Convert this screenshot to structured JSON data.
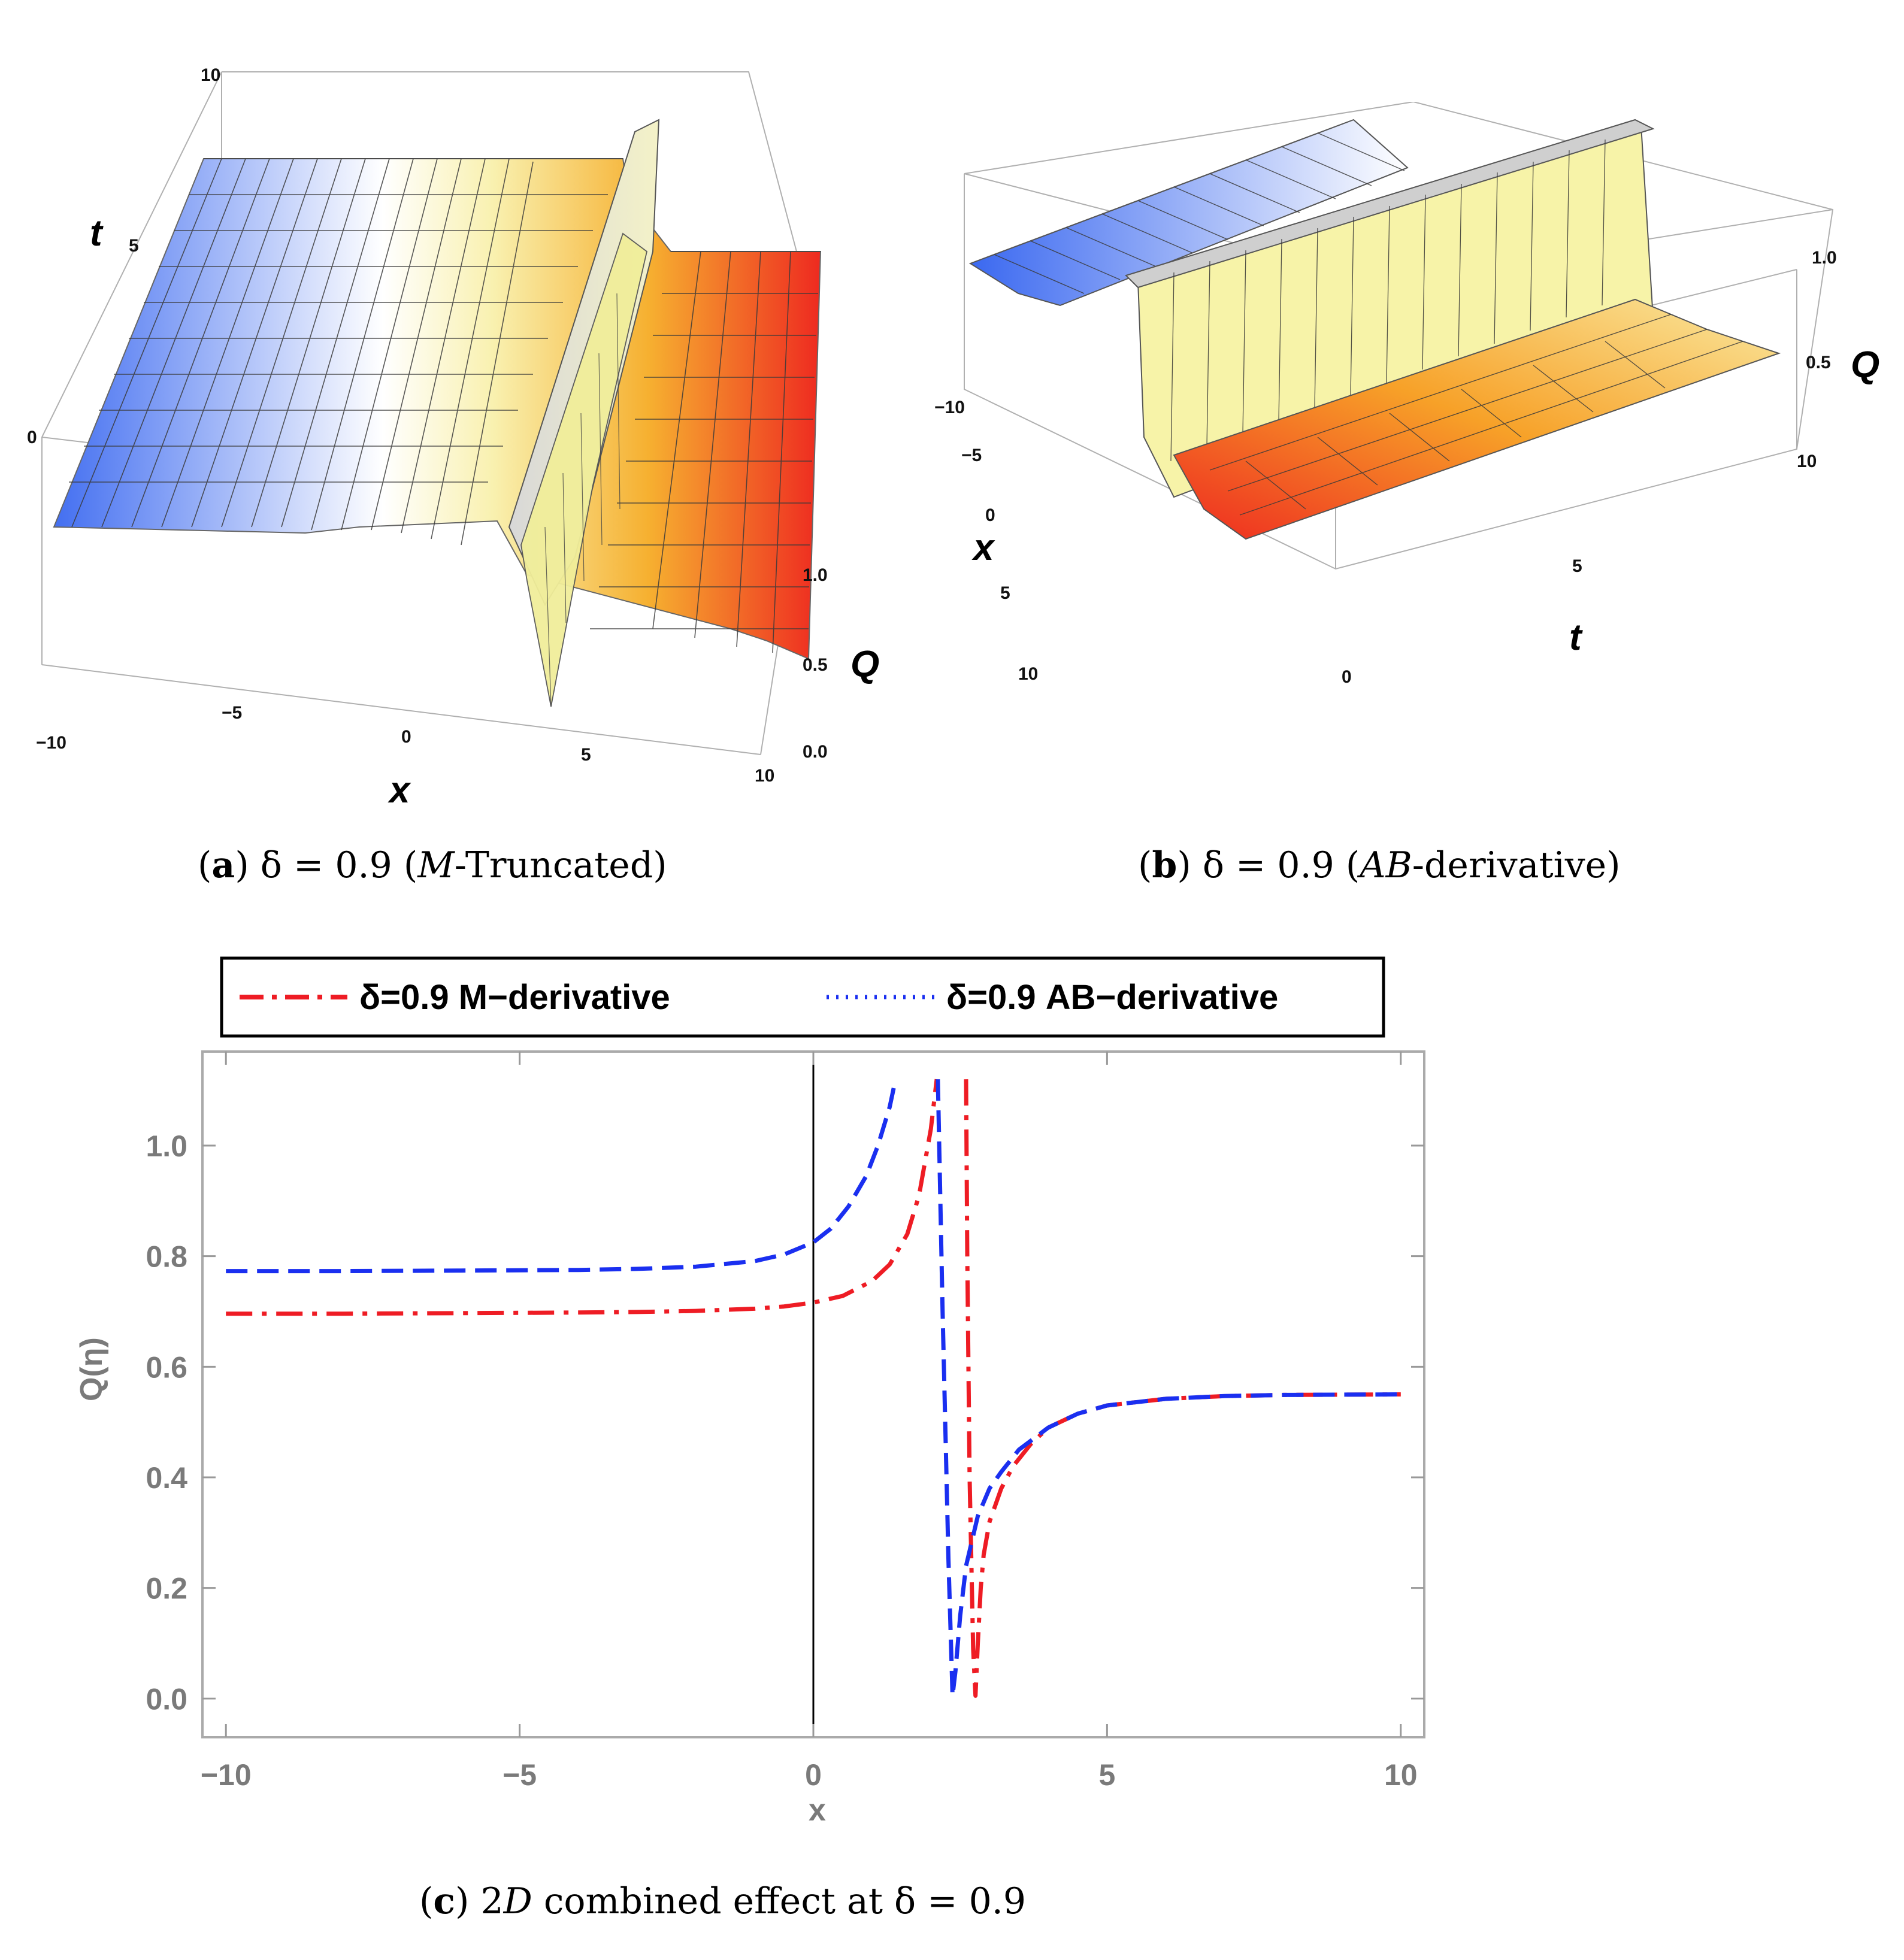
{
  "captions": {
    "a": {
      "label": "a",
      "expr": "δ = 0.9",
      "open": "(",
      "variant": "M",
      "rest": "-Truncated)"
    },
    "b": {
      "label": "b",
      "expr": "δ = 0.9",
      "open": "(",
      "variant": "AB",
      "rest": "-derivative)"
    },
    "c": {
      "label": "c",
      "pre": "2",
      "dim": "D",
      "rest": " combined effect at δ = 0.9"
    }
  },
  "chart_data": [
    {
      "id": "a",
      "type": "surface3d",
      "title": "δ = 0.9 (M-Truncated)",
      "axes": {
        "x": {
          "label": "x",
          "range": [
            -10,
            10
          ],
          "ticks": [
            "−10",
            "−5",
            "0",
            "5",
            "10"
          ]
        },
        "t": {
          "label": "t",
          "range": [
            0,
            10
          ],
          "ticks": [
            "0",
            "5",
            "10"
          ]
        },
        "Q": {
          "label": "Q",
          "range": [
            0,
            1.2
          ],
          "ticks": [
            "0.0",
            "0.5",
            "1.0"
          ]
        }
      },
      "features": {
        "left_plateau": 0.7,
        "right_plateau": 0.55,
        "singularity_x": 2.5
      },
      "colormap": [
        "#3a68f0",
        "#ffffff",
        "#fff3a0",
        "#f5a020",
        "#ee2a20"
      ]
    },
    {
      "id": "b",
      "type": "surface3d",
      "title": "δ = 0.9 (AB-derivative)",
      "axes": {
        "x": {
          "label": "x",
          "range": [
            -10,
            10
          ],
          "ticks": [
            "−10",
            "−5",
            "0",
            "5",
            "10"
          ]
        },
        "t": {
          "label": "t",
          "range": [
            0,
            10
          ],
          "ticks": [
            "0",
            "5",
            "10"
          ]
        },
        "Q": {
          "label": "Q",
          "range": [
            0,
            1.2
          ],
          "ticks": [
            "0.5",
            "1.0"
          ]
        }
      },
      "features": {
        "left_plateau": 0.78,
        "right_plateau": 0.55,
        "singularity_x": 2.1
      },
      "colormap": [
        "#3a68f0",
        "#ffffff",
        "#fff3a0",
        "#f5a020",
        "#ee2a20"
      ]
    },
    {
      "id": "c",
      "type": "line",
      "title": "2D combined effect at δ = 0.9",
      "xlabel": "x",
      "ylabel": "Q(η)",
      "xlim": [
        -10.4,
        10.4
      ],
      "ylim": [
        -0.07,
        1.17
      ],
      "xticks": [
        -10,
        -5,
        0,
        5,
        10
      ],
      "xtick_labels": [
        "−10",
        "−5",
        "0",
        "5",
        "10"
      ],
      "yticks": [
        0,
        0.2,
        0.4,
        0.6,
        0.8,
        1.0
      ],
      "ytick_labels": [
        "0.0",
        "0.2",
        "0.4",
        "0.6",
        "0.8",
        "1.0"
      ],
      "legend_position": "top",
      "series": [
        {
          "name": "δ=0.9 M−derivative",
          "color": "#ee1c24",
          "style": "dashdot",
          "x": [
            -10,
            -8,
            -6,
            -4,
            -3,
            -2,
            -1,
            -0.5,
            0,
            0.5,
            1,
            1.3,
            1.6,
            1.8,
            2.0,
            2.1,
            2.2,
            2.5,
            2.6,
            2.62,
            2.66,
            2.72,
            2.76,
            2.8,
            2.85,
            2.9,
            3.0,
            3.2,
            3.4,
            3.7,
            4.0,
            4.5,
            5.0,
            6.0,
            7.0,
            8.0,
            10.0
          ],
          "y": [
            0.696,
            0.696,
            0.697,
            0.698,
            0.699,
            0.701,
            0.705,
            0.709,
            0.716,
            0.728,
            0.755,
            0.785,
            0.84,
            0.91,
            1.03,
            1.12,
            null,
            null,
            1.12,
            0.8,
            0.4,
            0.09,
            0.005,
            0.1,
            0.2,
            0.26,
            0.32,
            0.38,
            0.42,
            0.46,
            0.49,
            0.515,
            0.53,
            0.542,
            0.547,
            0.549,
            0.55
          ]
        },
        {
          "name": "δ=0.9 AB−derivative",
          "color": "#1a2ff0",
          "style": "dashed",
          "x": [
            -10,
            -8,
            -6,
            -4,
            -3,
            -2,
            -1,
            -0.5,
            0,
            0.3,
            0.6,
            0.9,
            1.1,
            1.3,
            1.4,
            1.45,
            2.05,
            2.12,
            2.2,
            2.3,
            2.37,
            2.42,
            2.5,
            2.6,
            2.8,
            3.0,
            3.2,
            3.5,
            4.0,
            4.5,
            5.0,
            6.0,
            7.0,
            8.0,
            10.0
          ],
          "y": [
            0.773,
            0.773,
            0.774,
            0.775,
            0.777,
            0.781,
            0.791,
            0.803,
            0.825,
            0.85,
            0.89,
            0.945,
            1.0,
            1.07,
            1.12,
            null,
            null,
            1.12,
            0.7,
            0.25,
            0.005,
            0.05,
            0.15,
            0.24,
            0.33,
            0.38,
            0.41,
            0.45,
            0.49,
            0.515,
            0.53,
            0.542,
            0.547,
            0.549,
            0.55
          ]
        }
      ]
    }
  ]
}
